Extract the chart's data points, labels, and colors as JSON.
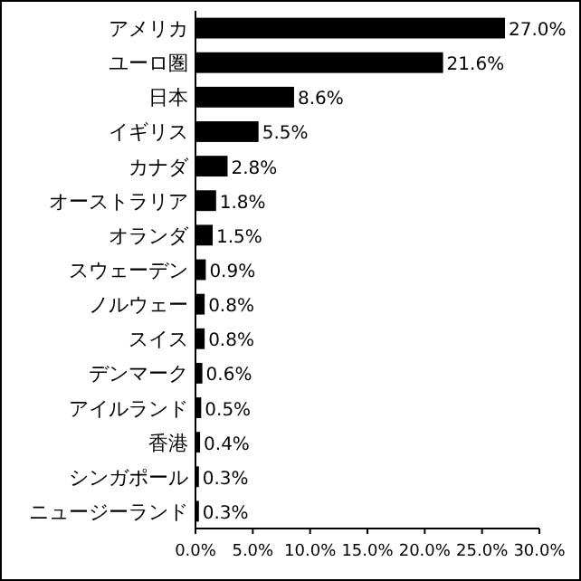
{
  "chart_data": {
    "type": "bar",
    "orientation": "horizontal",
    "categories": [
      "アメリカ",
      "ユーロ圏",
      "日本",
      "イギリス",
      "カナダ",
      "オーストラリア",
      "オランダ",
      "スウェーデン",
      "ノルウェー",
      "スイス",
      "デンマーク",
      "アイルランド",
      "香港",
      "シンガポール",
      "ニュージーランド"
    ],
    "values": [
      27.0,
      21.6,
      8.6,
      5.5,
      2.8,
      1.8,
      1.5,
      0.9,
      0.8,
      0.8,
      0.6,
      0.5,
      0.4,
      0.3,
      0.3
    ],
    "value_labels": [
      "27.0%",
      "21.6%",
      "8.6%",
      "5.5%",
      "2.8%",
      "1.8%",
      "1.5%",
      "0.9%",
      "0.8%",
      "0.8%",
      "0.6%",
      "0.5%",
      "0.4%",
      "0.3%",
      "0.3%"
    ],
    "color": "#000000",
    "xlim": [
      0,
      30
    ],
    "xticks": [
      {
        "value": 0,
        "label": "0.0%"
      },
      {
        "value": 5,
        "label": "5.0%"
      },
      {
        "value": 10,
        "label": "10.0%"
      },
      {
        "value": 15,
        "label": "15.0%"
      },
      {
        "value": 20,
        "label": "20.0%"
      },
      {
        "value": 25,
        "label": "25.0%"
      },
      {
        "value": 30,
        "label": "30.0%"
      }
    ],
    "grid": false
  }
}
